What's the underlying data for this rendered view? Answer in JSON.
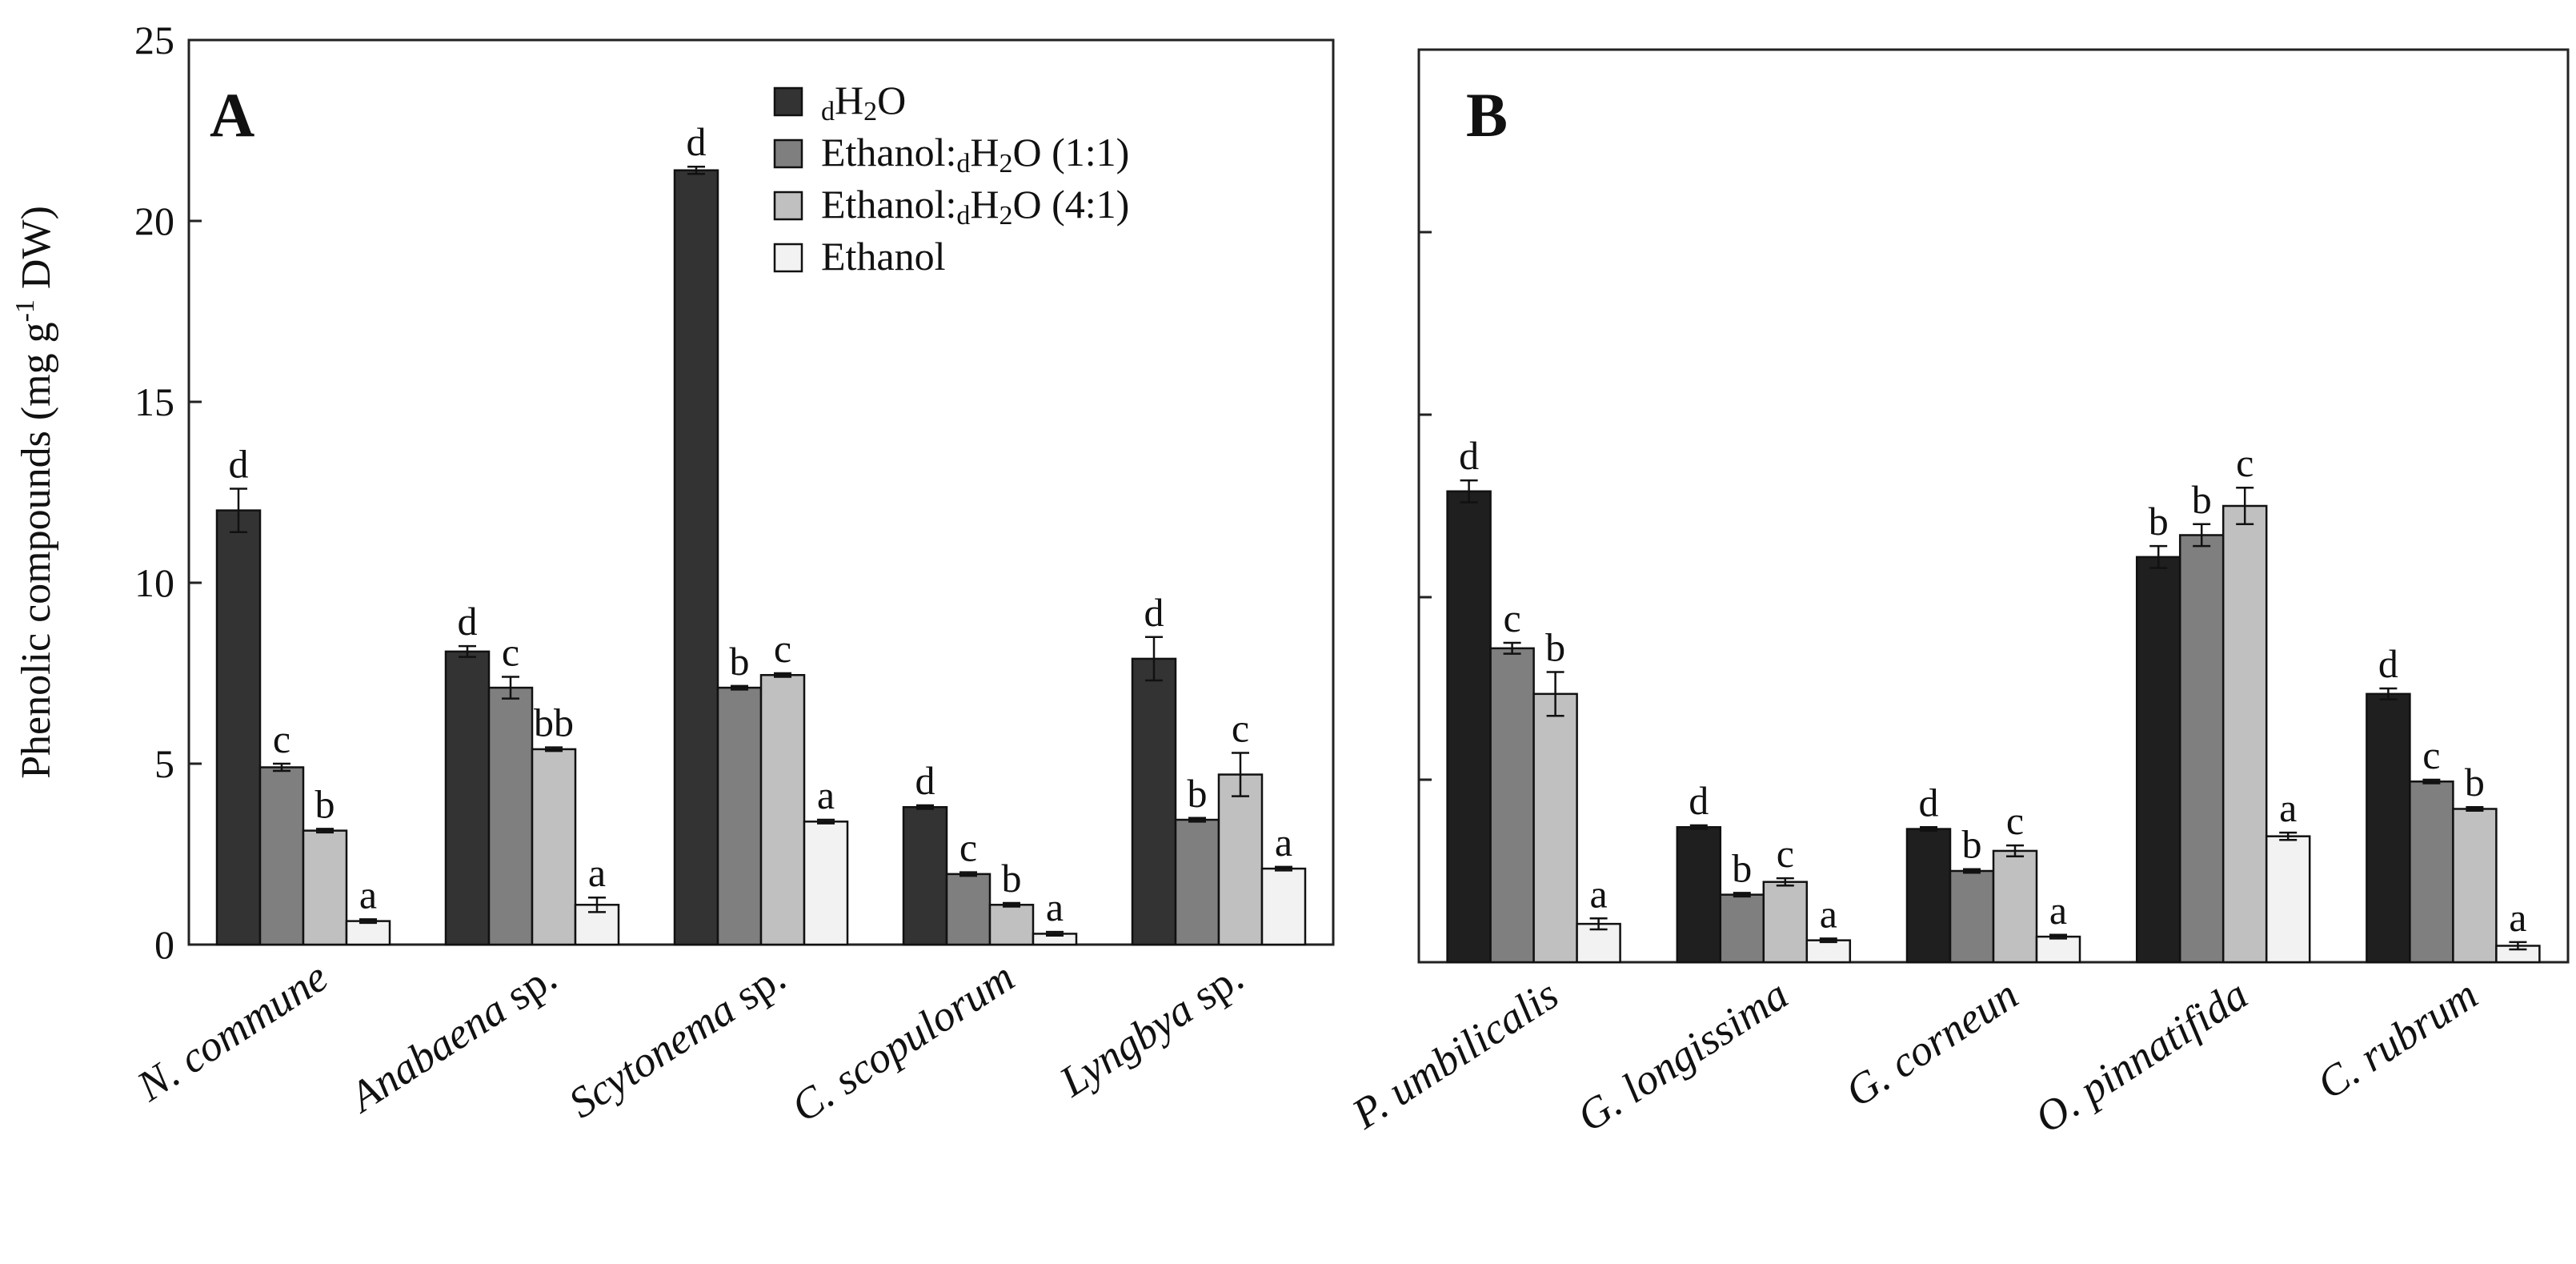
{
  "chart_data": [
    {
      "panel": "A",
      "type": "bar",
      "ylabel_main": "Phenolic compounds (mg g",
      "ylabel_exp": "-1",
      "ylabel_tail": " DW)",
      "ylim": [
        0,
        25
      ],
      "yticks": [
        0,
        5,
        10,
        15,
        20,
        25
      ],
      "categories": [
        {
          "italic": "N. commune",
          "plain": ""
        },
        {
          "italic": "Anabaena",
          "plain": " sp."
        },
        {
          "italic": "Scytonema",
          "plain": " sp."
        },
        {
          "italic": "C. scopulorum",
          "plain": ""
        },
        {
          "italic": "Lyngbya",
          "plain": " sp."
        }
      ],
      "series": [
        {
          "name": "dH2O",
          "color": "#333333",
          "values": [
            12.0,
            8.1,
            21.4,
            3.8,
            7.9
          ],
          "errors": [
            0.6,
            0.15,
            0.1,
            0.05,
            0.6
          ],
          "letters": [
            "d",
            "d",
            "d",
            "d",
            "d"
          ]
        },
        {
          "name": "Ethanol:dH2O (1:1)",
          "color": "#7f7f7f",
          "values": [
            4.9,
            7.1,
            7.1,
            1.95,
            3.45
          ],
          "errors": [
            0.1,
            0.3,
            0.05,
            0.05,
            0.05
          ],
          "letters": [
            "c",
            "c",
            "b",
            "c",
            "b"
          ]
        },
        {
          "name": "Ethanol:dH2O (4:1)",
          "color": "#c0c0c0",
          "values": [
            3.15,
            5.4,
            7.45,
            1.1,
            4.7
          ],
          "errors": [
            0.05,
            0.05,
            0.05,
            0.05,
            0.6
          ],
          "letters": [
            "b",
            "bb",
            "c",
            "b",
            "c"
          ]
        },
        {
          "name": "Ethanol",
          "color": "#f2f2f2",
          "values": [
            0.65,
            1.1,
            3.4,
            0.3,
            2.1
          ],
          "errors": [
            0.05,
            0.2,
            0.05,
            0.05,
            0.05
          ],
          "letters": [
            "a",
            "a",
            "a",
            "a",
            "a"
          ]
        }
      ]
    },
    {
      "panel": "B",
      "type": "bar",
      "ylim": [
        0,
        25
      ],
      "categories": [
        {
          "italic": "P. umbilicalis",
          "plain": ""
        },
        {
          "italic": "G. longissima",
          "plain": ""
        },
        {
          "italic": "G. corneun",
          "plain": ""
        },
        {
          "italic": "O. pinnatifida",
          "plain": ""
        },
        {
          "italic": "C. rubrum",
          "plain": ""
        }
      ],
      "series": [
        {
          "name": "dH2O",
          "color": "#1f1f1f",
          "values": [
            12.9,
            3.7,
            3.65,
            11.1,
            7.35
          ],
          "errors": [
            0.3,
            0.05,
            0.05,
            0.3,
            0.15
          ],
          "letters": [
            "d",
            "d",
            "d",
            "b",
            "d"
          ]
        },
        {
          "name": "Ethanol:dH2O (1:1)",
          "color": "#7f7f7f",
          "values": [
            8.6,
            1.85,
            2.5,
            11.7,
            4.95
          ],
          "errors": [
            0.15,
            0.05,
            0.05,
            0.3,
            0.05
          ],
          "letters": [
            "c",
            "b",
            "b",
            "b",
            "c"
          ]
        },
        {
          "name": "Ethanol:dH2O (4:1)",
          "color": "#c0c0c0",
          "values": [
            7.35,
            2.2,
            3.05,
            12.5,
            4.2
          ],
          "errors": [
            0.6,
            0.1,
            0.15,
            0.5,
            0.05
          ],
          "letters": [
            "b",
            "c",
            "c",
            "c",
            "b"
          ]
        },
        {
          "name": "Ethanol",
          "color": "#f2f2f2",
          "values": [
            1.05,
            0.6,
            0.7,
            3.45,
            0.45
          ],
          "errors": [
            0.15,
            0.05,
            0.05,
            0.1,
            0.1
          ],
          "letters": [
            "a",
            "a",
            "a",
            "a",
            "a"
          ]
        }
      ]
    }
  ],
  "legend": [
    {
      "prefix": "",
      "sub": "d",
      "main": "H",
      "sub2": "2",
      "suffix": "O",
      "color": "#333333"
    },
    {
      "prefix": "Ethanol:",
      "sub": "d",
      "main": "H",
      "sub2": "2",
      "suffix": "O (1:1)",
      "color": "#7f7f7f"
    },
    {
      "prefix": "Ethanol:",
      "sub": "d",
      "main": "H",
      "sub2": "2",
      "suffix": "O (4:1)",
      "color": "#c0c0c0"
    },
    {
      "prefix": "",
      "sub": "",
      "main": "Ethanol",
      "sub2": "",
      "suffix": "",
      "color": "#f2f2f2"
    }
  ]
}
